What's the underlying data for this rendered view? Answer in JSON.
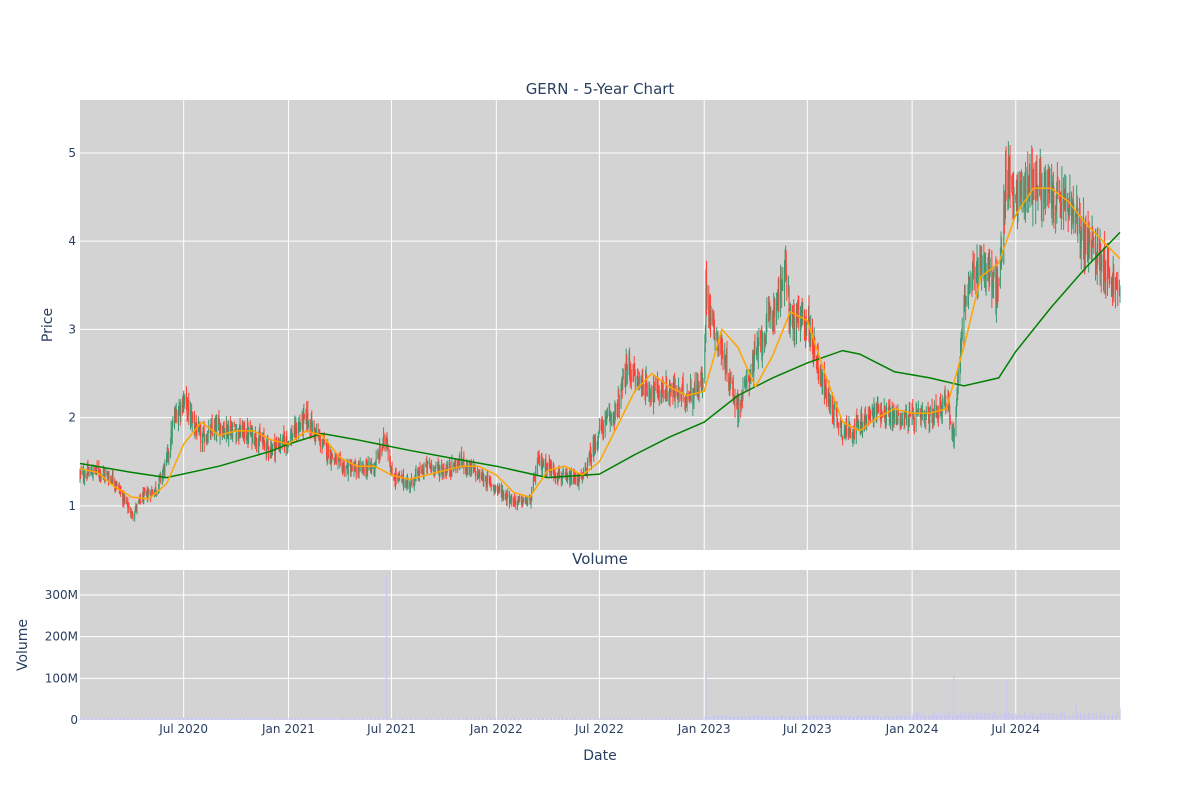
{
  "chart_data": [
    {
      "type": "candlestick",
      "title": "GERN - 5-Year Chart",
      "xlabel": "",
      "ylabel": "Price",
      "ylim": [
        0.5,
        5.6
      ],
      "y_ticks": [
        1,
        2,
        3,
        4,
        5
      ],
      "grid": true,
      "colors": {
        "up": "#3d9970",
        "down": "#ff4136",
        "ma_short": "#ffa500",
        "ma_long": "#008000",
        "plot_bg": "#d3d3d3"
      },
      "series": [
        {
          "name": "",
          "kind": "ohlc_close_envelope",
          "x": [
            "2020-01-01",
            "2020-02-01",
            "2020-03-01",
            "2020-03-20",
            "2020-04-01",
            "2020-04-20",
            "2020-05-15",
            "2020-06-01",
            "2020-06-15",
            "2020-07-01",
            "2020-08-01",
            "2020-09-01",
            "2020-10-01",
            "2020-11-01",
            "2020-12-01",
            "2021-01-01",
            "2021-02-01",
            "2021-02-15",
            "2021-03-01",
            "2021-04-01",
            "2021-05-01",
            "2021-06-01",
            "2021-06-22",
            "2021-07-01",
            "2021-08-01",
            "2021-09-01",
            "2021-10-01",
            "2021-11-01",
            "2021-12-01",
            "2022-01-01",
            "2022-02-01",
            "2022-03-01",
            "2022-03-15",
            "2022-04-01",
            "2022-05-01",
            "2022-06-01",
            "2022-07-01",
            "2022-08-01",
            "2022-08-20",
            "2022-09-01",
            "2022-10-01",
            "2022-11-01",
            "2022-12-01",
            "2023-01-01",
            "2023-01-04",
            "2023-01-15",
            "2023-02-01",
            "2023-03-01",
            "2023-04-01",
            "2023-05-01",
            "2023-05-25",
            "2023-06-01",
            "2023-07-01",
            "2023-08-01",
            "2023-09-01",
            "2023-10-01",
            "2023-11-01",
            "2023-12-01",
            "2024-01-01",
            "2024-02-01",
            "2024-03-01",
            "2024-03-14",
            "2024-04-01",
            "2024-05-01",
            "2024-06-01",
            "2024-06-15",
            "2024-07-01",
            "2024-08-01",
            "2024-09-01",
            "2024-10-01",
            "2024-11-01",
            "2024-12-01",
            "2024-12-31"
          ],
          "values": [
            1.35,
            1.4,
            1.3,
            1.05,
            0.9,
            1.1,
            1.2,
            1.5,
            2.0,
            2.2,
            1.75,
            1.9,
            1.85,
            1.8,
            1.65,
            1.75,
            2.0,
            1.85,
            1.7,
            1.45,
            1.4,
            1.45,
            1.8,
            1.35,
            1.25,
            1.45,
            1.4,
            1.5,
            1.35,
            1.2,
            1.05,
            1.05,
            1.5,
            1.45,
            1.3,
            1.3,
            1.85,
            2.1,
            2.6,
            2.45,
            2.3,
            2.3,
            2.25,
            2.4,
            3.5,
            3.1,
            2.75,
            2.1,
            2.7,
            3.2,
            3.65,
            3.1,
            3.1,
            2.3,
            1.85,
            1.9,
            2.1,
            2.0,
            2.0,
            2.0,
            2.2,
            1.8,
            3.3,
            3.8,
            3.4,
            4.8,
            4.5,
            4.7,
            4.5,
            4.4,
            4.0,
            3.8,
            3.35
          ]
        },
        {
          "name": "",
          "kind": "moving_average_short",
          "x": [
            "2020-01-01",
            "2020-02-01",
            "2020-03-01",
            "2020-04-01",
            "2020-05-01",
            "2020-06-01",
            "2020-07-01",
            "2020-08-01",
            "2020-09-01",
            "2020-10-01",
            "2020-11-01",
            "2020-12-01",
            "2021-01-01",
            "2021-02-01",
            "2021-03-01",
            "2021-04-01",
            "2021-05-01",
            "2021-06-01",
            "2021-07-01",
            "2021-08-01",
            "2021-09-01",
            "2021-10-01",
            "2021-11-01",
            "2021-12-01",
            "2022-01-01",
            "2022-02-01",
            "2022-03-01",
            "2022-04-01",
            "2022-05-01",
            "2022-06-01",
            "2022-07-01",
            "2022-08-01",
            "2022-09-01",
            "2022-10-01",
            "2022-11-01",
            "2022-12-01",
            "2023-01-01",
            "2023-02-01",
            "2023-03-01",
            "2023-04-01",
            "2023-05-01",
            "2023-06-01",
            "2023-07-01",
            "2023-08-01",
            "2023-09-01",
            "2023-10-01",
            "2023-11-01",
            "2023-12-01",
            "2024-01-01",
            "2024-02-01",
            "2024-03-01",
            "2024-04-01",
            "2024-05-01",
            "2024-06-01",
            "2024-07-01",
            "2024-08-01",
            "2024-09-01",
            "2024-10-01",
            "2024-11-01",
            "2024-12-01",
            "2024-12-31"
          ],
          "values": [
            1.42,
            1.38,
            1.22,
            1.1,
            1.08,
            1.25,
            1.7,
            1.95,
            1.8,
            1.85,
            1.85,
            1.75,
            1.7,
            1.85,
            1.8,
            1.55,
            1.45,
            1.45,
            1.35,
            1.3,
            1.35,
            1.4,
            1.45,
            1.45,
            1.35,
            1.15,
            1.1,
            1.4,
            1.45,
            1.35,
            1.5,
            1.9,
            2.3,
            2.5,
            2.35,
            2.25,
            2.3,
            3.0,
            2.8,
            2.35,
            2.7,
            3.2,
            3.1,
            2.5,
            1.95,
            1.85,
            2.0,
            2.1,
            2.05,
            2.05,
            2.1,
            2.8,
            3.6,
            3.75,
            4.3,
            4.6,
            4.6,
            4.45,
            4.2,
            4.0,
            3.8
          ]
        },
        {
          "name": "",
          "kind": "moving_average_long",
          "x": [
            "2020-01-01",
            "2020-04-01",
            "2020-06-01",
            "2020-09-01",
            "2020-12-01",
            "2021-01-01",
            "2021-03-01",
            "2021-05-01",
            "2021-08-01",
            "2021-11-01",
            "2022-01-01",
            "2022-04-01",
            "2022-07-01",
            "2022-09-01",
            "2022-11-01",
            "2023-01-01",
            "2023-03-01",
            "2023-05-01",
            "2023-07-01",
            "2023-09-01",
            "2023-10-01",
            "2023-12-01",
            "2024-02-01",
            "2024-04-01",
            "2024-06-01",
            "2024-07-01",
            "2024-09-01",
            "2024-11-01",
            "2024-12-31"
          ],
          "values": [
            1.48,
            1.38,
            1.32,
            1.45,
            1.62,
            1.7,
            1.82,
            1.75,
            1.63,
            1.52,
            1.45,
            1.32,
            1.36,
            1.58,
            1.78,
            1.95,
            2.25,
            2.45,
            2.62,
            2.76,
            2.72,
            2.52,
            2.45,
            2.36,
            2.45,
            2.75,
            3.25,
            3.7,
            4.1
          ]
        }
      ]
    },
    {
      "type": "bar",
      "title": "Volume",
      "xlabel": "Date",
      "ylabel": "Volume",
      "ylim": [
        0,
        360000000
      ],
      "y_ticks": [
        0,
        100000000,
        200000000,
        300000000
      ],
      "y_tick_labels": [
        "0",
        "100M",
        "200M",
        "300M"
      ],
      "x_tick_dates": [
        "2020-07-01",
        "2021-01-01",
        "2021-07-01",
        "2022-01-01",
        "2022-07-01",
        "2023-01-01",
        "2023-07-01",
        "2024-01-01",
        "2024-07-01"
      ],
      "x_tick_labels": [
        "Jul 2020",
        "Jan 2021",
        "Jul 2021",
        "Jan 2022",
        "Jul 2022",
        "Jan 2023",
        "Jul 2023",
        "Jan 2024",
        "Jul 2024"
      ],
      "x_range": [
        "2020-01-01",
        "2024-12-31"
      ],
      "bar_color": "#c8c8f0",
      "spikes": [
        {
          "date": "2021-06-22",
          "value": 345000000
        },
        {
          "date": "2023-01-04",
          "value": 115000000
        },
        {
          "date": "2024-03-14",
          "value": 108000000
        },
        {
          "date": "2024-06-15",
          "value": 95000000
        },
        {
          "date": "2024-10-15",
          "value": 40000000
        },
        {
          "date": "2024-12-31",
          "value": 28000000
        }
      ],
      "baseline_volume": [
        {
          "from": "2020-01-01",
          "to": "2022-12-31",
          "value": 4000000
        },
        {
          "from": "2023-01-01",
          "to": "2023-12-31",
          "value": 8000000
        },
        {
          "from": "2024-01-01",
          "to": "2024-12-31",
          "value": 13000000
        }
      ]
    }
  ]
}
